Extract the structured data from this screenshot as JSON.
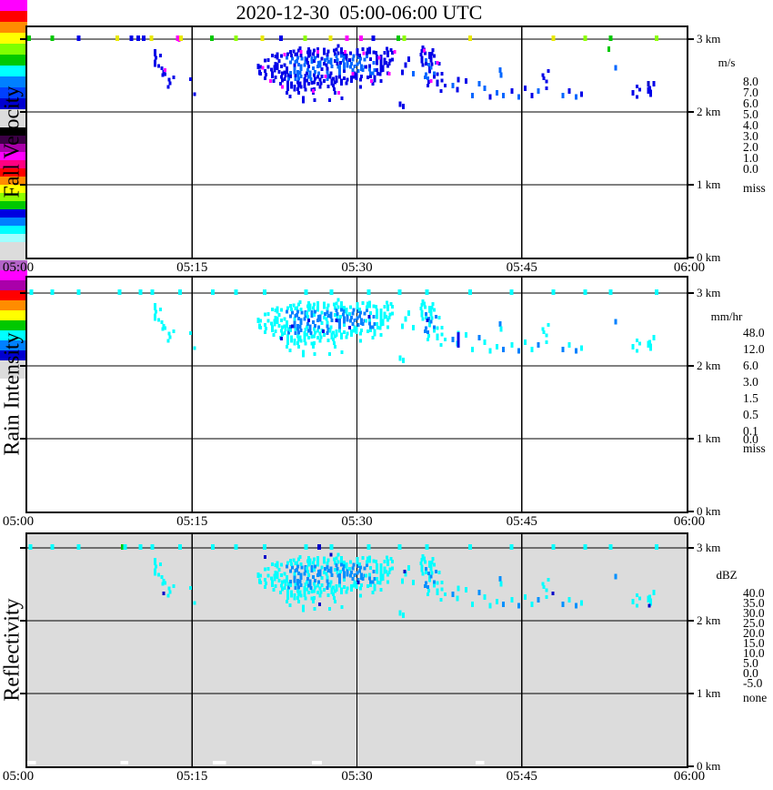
{
  "chart_data": {
    "type": "heatmap",
    "title": "2020-12-30  05:00-06:00 UTC",
    "x_axis": {
      "ticks": [
        "05:00",
        "05:15",
        "05:30",
        "05:45",
        "06:00"
      ],
      "range_minutes": [
        0,
        60
      ],
      "gridline_minutes": [
        15,
        30,
        45
      ]
    },
    "y_axis": {
      "ticks": [
        "0 km",
        "1 km",
        "2 km",
        "3 km"
      ],
      "range_km": [
        0,
        3.16
      ],
      "gridline_km": [
        1,
        2,
        3
      ]
    },
    "tick_colors": {
      "G": "#00C800",
      "H": "#8CFF00",
      "Y": "#E8E800",
      "B": "#0000E8",
      "M": "#FF00FF",
      "C": "#00FFFF",
      "N": "#0000C8"
    },
    "panels": [
      {
        "name": "Fall Velocity",
        "unit": "m/s",
        "background": "#FFFFFF",
        "palette": {
          "outer": "#0000E8",
          "inner": "#0066FF",
          "speck": "#FF00FF"
        },
        "colorbar": {
          "unit": "m/s",
          "cells": [
            [
              "#FF00FF",
              "8.0"
            ],
            [
              "#FF0000",
              "7.0"
            ],
            [
              "#FF8C00",
              "6.0"
            ],
            [
              "#FFFF00",
              "5.0"
            ],
            [
              "#7FFF00",
              "4.0"
            ],
            [
              "#00C800",
              "3.0"
            ],
            [
              "#00FFFF",
              "2.0"
            ],
            [
              "#0080FF",
              "1.0"
            ],
            [
              "#0040FF",
              "0.0"
            ],
            [
              "#0000D0",
              null
            ]
          ],
          "extra": {
            "label": "miss",
            "color": "#DCDCDC"
          }
        },
        "top_ticks": [
          [
            0.1,
            "G"
          ],
          [
            2.2,
            "G"
          ],
          [
            4.6,
            "B"
          ],
          [
            8.1,
            "Y"
          ],
          [
            9.4,
            "B"
          ],
          [
            10.0,
            "B"
          ],
          [
            10.5,
            "B"
          ],
          [
            11.2,
            "Y"
          ],
          [
            13.6,
            "M"
          ],
          [
            13.9,
            "Y"
          ],
          [
            16.7,
            "G"
          ],
          [
            18.9,
            "H"
          ],
          [
            21.3,
            "Y"
          ],
          [
            23.0,
            "B"
          ],
          [
            25.2,
            "H"
          ],
          [
            27.5,
            "Y"
          ],
          [
            29.0,
            "M"
          ],
          [
            30.3,
            "M"
          ],
          [
            31.4,
            "B"
          ],
          [
            33.7,
            "G"
          ],
          [
            34.2,
            "H"
          ],
          [
            40.2,
            "Y"
          ],
          [
            47.8,
            "Y"
          ],
          [
            50.7,
            "H"
          ],
          [
            53.0,
            "G"
          ],
          [
            57.2,
            "H"
          ]
        ],
        "specks": [
          [
            21.3,
            2.58
          ],
          [
            22.0,
            2.4
          ],
          [
            23.1,
            2.32
          ],
          [
            23.3,
            2.76
          ],
          [
            24.8,
            2.8
          ],
          [
            25.9,
            2.26
          ],
          [
            26.3,
            2.8
          ],
          [
            27.0,
            2.46
          ],
          [
            28.2,
            2.24
          ],
          [
            28.8,
            2.8
          ],
          [
            29.5,
            2.5
          ],
          [
            30.5,
            2.78
          ],
          [
            31.2,
            2.4
          ],
          [
            31.9,
            2.72
          ],
          [
            32.8,
            2.5
          ],
          [
            33.3,
            2.8
          ],
          [
            36.0,
            2.82
          ],
          [
            36.6,
            2.4
          ],
          [
            37.2,
            2.65
          ],
          [
            12.4,
            2.55
          ],
          [
            13.7,
            2.96
          ]
        ],
        "extra_cells": [
          [
            52.8,
            2.84,
            "G"
          ],
          [
            56.4,
            2.36,
            "N"
          ]
        ]
      },
      {
        "name": "Rain Intensity",
        "unit": "mm/hr",
        "background": "#FFFFFF",
        "palette": {
          "outer": "#00FFFF",
          "inner": "#0080FF",
          "speck": "#0000E0"
        },
        "colorbar": {
          "unit": "mm/hr",
          "cells": [
            [
              "#000000",
              "48.0"
            ],
            [
              "#3C0046",
              null
            ],
            [
              "#AA00AA",
              "12.0"
            ],
            [
              "#FF00FF",
              null
            ],
            [
              "#FF0082",
              "6.0"
            ],
            [
              "#FF0000",
              null
            ],
            [
              "#FF8C00",
              "3.0"
            ],
            [
              "#FFFF00",
              null
            ],
            [
              "#8CFF00",
              "1.5"
            ],
            [
              "#00C800",
              null
            ],
            [
              "#0000E0",
              "0.5"
            ],
            [
              "#0080FF",
              null
            ],
            [
              "#00FFFF",
              "0.1"
            ],
            [
              "#A0FFFF",
              "0.0"
            ]
          ],
          "extra": {
            "label": "miss",
            "color": "#DCDCDC"
          }
        },
        "top_ticks": [
          [
            0.3,
            "C"
          ],
          [
            2.2,
            "C"
          ],
          [
            4.6,
            "C"
          ],
          [
            8.3,
            "C"
          ],
          [
            10.2,
            "C"
          ],
          [
            11.3,
            "C"
          ],
          [
            13.8,
            "C"
          ],
          [
            16.8,
            "C"
          ],
          [
            18.9,
            "C"
          ],
          [
            21.5,
            "C"
          ],
          [
            25.3,
            "C"
          ],
          [
            27.6,
            "C"
          ],
          [
            31.0,
            "C"
          ],
          [
            33.8,
            "C"
          ],
          [
            36.3,
            "C"
          ],
          [
            40.2,
            "C"
          ],
          [
            44.0,
            "C"
          ],
          [
            47.8,
            "C"
          ],
          [
            50.7,
            "C"
          ],
          [
            53.0,
            "C"
          ],
          [
            57.2,
            "C"
          ]
        ],
        "specks": [
          [
            24.0,
            2.52
          ],
          [
            25.5,
            2.6
          ],
          [
            26.8,
            2.45
          ],
          [
            28.0,
            2.6
          ],
          [
            29.2,
            2.5
          ],
          [
            31.0,
            2.65
          ],
          [
            36.3,
            2.6
          ],
          [
            23.0,
            2.35
          ]
        ],
        "extra_cells": [
          [
            39.1,
            2.4,
            "B"
          ],
          [
            39.1,
            2.33,
            "B"
          ],
          [
            39.1,
            2.26,
            "B"
          ]
        ]
      },
      {
        "name": "Reflectivity",
        "unit": "dBZ",
        "background": "#DCDCDC",
        "palette": {
          "outer": "#00FFFF",
          "inner": "#0090FF",
          "speck": "#0000C8"
        },
        "colorbar": {
          "unit": "dBZ",
          "cells": [
            [
              "#B464C8",
              "40.0"
            ],
            [
              "#FF00FF",
              "35.0"
            ],
            [
              "#AA00AA",
              "30.0"
            ],
            [
              "#FF0000",
              "25.0"
            ],
            [
              "#FF8C00",
              "20.0"
            ],
            [
              "#FFFF00",
              "15.0"
            ],
            [
              "#00C800",
              "10.0"
            ],
            [
              "#00FFFF",
              "5.0"
            ],
            [
              "#0080FF",
              "0.0"
            ],
            [
              "#0000D0",
              "-5.0"
            ]
          ],
          "extra": {
            "label": "none",
            "color": "#DCDCDC"
          }
        },
        "top_ticks": [
          [
            0.2,
            "C"
          ],
          [
            2.2,
            "C"
          ],
          [
            4.6,
            "C"
          ],
          [
            8.6,
            "G"
          ],
          [
            8.8,
            "C"
          ],
          [
            10.2,
            "C"
          ],
          [
            11.3,
            "C"
          ],
          [
            13.8,
            "C"
          ],
          [
            16.8,
            "C"
          ],
          [
            18.9,
            "C"
          ],
          [
            21.5,
            "C"
          ],
          [
            25.3,
            "C"
          ],
          [
            26.5,
            "N"
          ],
          [
            27.6,
            "C"
          ],
          [
            31.0,
            "C"
          ],
          [
            33.8,
            "C"
          ],
          [
            36.3,
            "C"
          ],
          [
            40.2,
            "C"
          ],
          [
            44.0,
            "C"
          ],
          [
            47.8,
            "C"
          ],
          [
            50.7,
            "C"
          ],
          [
            53.0,
            "C"
          ],
          [
            57.2,
            "C"
          ]
        ],
        "specks": [
          [
            12.3,
            2.35
          ],
          [
            21.5,
            2.85
          ],
          [
            26.5,
            2.2
          ],
          [
            30.0,
            2.5
          ],
          [
            34.2,
            2.65
          ],
          [
            47.7,
            2.35
          ],
          [
            56.5,
            2.18
          ],
          [
            27.5,
            2.88
          ]
        ],
        "extra_cells": [],
        "ground_marks": [
          [
            0.0,
            0.8
          ],
          [
            8.5,
            0.7
          ],
          [
            16.9,
            1.2
          ],
          [
            25.9,
            0.9
          ],
          [
            40.8,
            0.8
          ]
        ]
      }
    ],
    "echo": {
      "columns": [
        [
          11.6,
          2.62,
          2.82,
          5
        ],
        [
          11.9,
          2.56,
          2.76,
          5
        ],
        [
          12.2,
          2.48,
          2.68,
          5
        ],
        [
          12.5,
          2.4,
          2.6,
          4
        ],
        [
          12.8,
          2.32,
          2.52,
          4
        ],
        [
          13.1,
          2.26,
          2.44,
          4
        ],
        [
          13.4,
          2.2,
          2.36,
          3
        ],
        [
          14.8,
          2.28,
          2.44,
          3
        ],
        [
          15.1,
          2.22,
          2.34,
          2
        ],
        [
          21.2,
          2.5,
          2.66,
          5
        ],
        [
          21.5,
          2.44,
          2.7,
          6
        ],
        [
          21.8,
          2.4,
          2.68,
          6
        ],
        [
          22.1,
          2.46,
          2.8,
          6
        ],
        [
          22.4,
          2.4,
          2.76,
          7
        ],
        [
          22.7,
          2.48,
          2.84,
          6
        ],
        [
          23.0,
          2.36,
          2.8,
          7
        ],
        [
          23.3,
          2.28,
          2.72,
          6
        ],
        [
          23.6,
          2.24,
          2.76,
          7
        ],
        [
          23.9,
          2.32,
          2.84,
          7
        ],
        [
          24.2,
          2.28,
          2.82,
          8
        ],
        [
          24.5,
          2.24,
          2.84,
          8
        ],
        [
          24.8,
          2.32,
          2.86,
          8
        ],
        [
          25.1,
          2.28,
          2.82,
          8
        ],
        [
          25.4,
          2.36,
          2.84,
          8
        ],
        [
          25.7,
          2.28,
          2.8,
          8
        ],
        [
          26.0,
          2.24,
          2.82,
          8
        ],
        [
          26.3,
          2.36,
          2.86,
          8
        ],
        [
          26.6,
          2.32,
          2.82,
          8
        ],
        [
          26.9,
          2.4,
          2.84,
          8
        ],
        [
          27.2,
          2.28,
          2.82,
          8
        ],
        [
          27.5,
          2.36,
          2.8,
          8
        ],
        [
          27.8,
          2.24,
          2.84,
          7
        ],
        [
          28.1,
          2.4,
          2.86,
          7
        ],
        [
          28.4,
          2.36,
          2.82,
          8
        ],
        [
          28.7,
          2.44,
          2.84,
          7
        ],
        [
          29.0,
          2.32,
          2.8,
          7
        ],
        [
          29.3,
          2.4,
          2.82,
          7
        ],
        [
          29.6,
          2.36,
          2.86,
          7
        ],
        [
          29.9,
          2.44,
          2.82,
          6
        ],
        [
          30.2,
          2.32,
          2.76,
          6
        ],
        [
          30.5,
          2.5,
          2.86,
          6
        ],
        [
          30.8,
          2.4,
          2.82,
          7
        ],
        [
          31.1,
          2.46,
          2.84,
          6
        ],
        [
          31.4,
          2.36,
          2.8,
          6
        ],
        [
          31.7,
          2.5,
          2.86,
          6
        ],
        [
          32.0,
          2.4,
          2.82,
          6
        ],
        [
          32.3,
          2.5,
          2.84,
          5
        ],
        [
          32.6,
          2.46,
          2.86,
          5
        ],
        [
          32.9,
          2.54,
          2.82,
          5
        ],
        [
          33.2,
          2.5,
          2.84,
          4
        ],
        [
          23.7,
          2.14,
          2.26,
          3
        ],
        [
          24.9,
          2.12,
          2.24,
          3
        ],
        [
          26.1,
          2.14,
          2.26,
          3
        ],
        [
          27.3,
          2.14,
          2.28,
          2
        ],
        [
          28.5,
          2.16,
          2.26,
          2
        ],
        [
          35.8,
          2.62,
          2.86,
          5
        ],
        [
          36.1,
          2.4,
          2.84,
          6
        ],
        [
          36.4,
          2.34,
          2.8,
          7
        ],
        [
          36.7,
          2.44,
          2.84,
          6
        ],
        [
          37.0,
          2.36,
          2.8,
          6
        ],
        [
          37.3,
          2.3,
          2.7,
          5
        ],
        [
          37.6,
          2.26,
          2.5,
          4
        ],
        [
          37.9,
          2.24,
          2.4,
          3
        ],
        [
          46.9,
          2.34,
          2.52,
          5
        ],
        [
          47.2,
          2.3,
          2.56,
          6
        ],
        [
          47.5,
          2.38,
          2.5,
          4
        ],
        [
          55.3,
          2.18,
          2.32,
          4
        ],
        [
          55.6,
          2.14,
          2.28,
          3
        ],
        [
          56.3,
          2.2,
          2.34,
          4
        ],
        [
          56.6,
          2.16,
          2.3,
          4
        ]
      ],
      "points": [
        [
          20.9,
          2.6
        ],
        [
          21.0,
          2.52
        ],
        [
          33.8,
          2.08
        ],
        [
          34.1,
          2.05
        ],
        [
          34.0,
          2.52
        ],
        [
          34.3,
          2.62
        ],
        [
          34.6,
          2.7
        ],
        [
          35.0,
          2.5
        ],
        [
          38.6,
          2.34
        ],
        [
          39.0,
          2.28
        ],
        [
          39.1,
          2.42
        ],
        [
          39.8,
          2.4
        ],
        [
          40.4,
          2.2
        ],
        [
          41.0,
          2.36
        ],
        [
          41.5,
          2.3
        ],
        [
          42.0,
          2.18
        ],
        [
          42.6,
          2.24
        ],
        [
          42.9,
          2.55
        ],
        [
          43.0,
          2.48
        ],
        [
          43.2,
          2.2
        ],
        [
          44.0,
          2.26
        ],
        [
          44.6,
          2.18
        ],
        [
          45.2,
          2.3
        ],
        [
          45.8,
          2.2
        ],
        [
          46.4,
          2.26
        ],
        [
          48.6,
          2.2
        ],
        [
          49.2,
          2.26
        ],
        [
          49.8,
          2.18
        ],
        [
          50.3,
          2.22
        ],
        [
          53.4,
          2.58
        ],
        [
          55.0,
          2.24
        ],
        [
          56.9,
          2.36
        ]
      ],
      "inner_regions": [
        [
          23.5,
          27.8,
          2.42,
          2.72
        ],
        [
          28.0,
          31.5,
          2.5,
          2.75
        ],
        [
          36.0,
          37.2,
          2.4,
          2.7
        ]
      ]
    }
  }
}
